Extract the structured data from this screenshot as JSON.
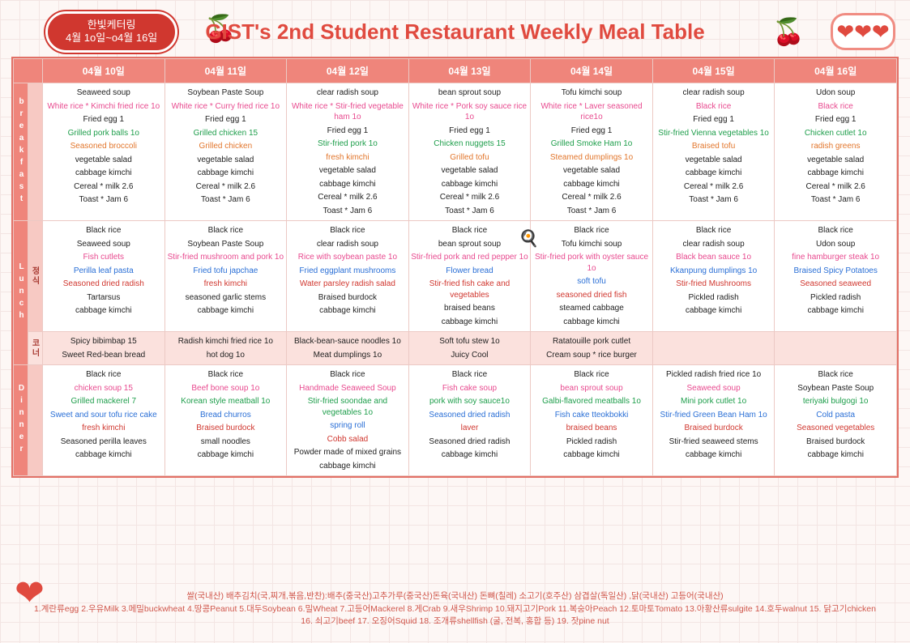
{
  "badge": {
    "line1": "한빛케터링",
    "line2": "4월 1o일~o4월 16일"
  },
  "title": "GIST's 2nd Student Restaurant Weekly Meal Table",
  "dates": [
    "04월 10일",
    "04월 11일",
    "04월 12일",
    "04월 13일",
    "04월 14일",
    "04월 15일",
    "04월 16일"
  ],
  "row_labels": {
    "breakfast": "breakfast",
    "lunch": "Lunch",
    "lunch_sub": "정식",
    "corner": "코너",
    "dinner": "Dinner"
  },
  "color_map": {
    "black": "#222222",
    "pink": "#e84a8f",
    "green": "#1e9e4b",
    "orange": "#e2762c",
    "red": "#d0372f",
    "blue": "#2a6fd6"
  },
  "breakfast": [
    [
      [
        "Seaweed soup",
        "black"
      ],
      [
        "White rice * Kimchi fried rice 1o",
        "pink"
      ],
      [
        "Fried egg 1",
        "black"
      ],
      [
        "Grilled pork balls 1o",
        "green"
      ],
      [
        "Seasoned broccoli",
        "orange"
      ],
      [
        "vegetable salad",
        "black"
      ],
      [
        "cabbage kimchi",
        "black"
      ],
      [
        "Cereal * milk 2.6",
        "black"
      ],
      [
        "Toast * Jam 6",
        "black"
      ]
    ],
    [
      [
        "Soybean Paste Soup",
        "black"
      ],
      [
        "White rice * Curry fried rice 1o",
        "pink"
      ],
      [
        "Fried egg 1",
        "black"
      ],
      [
        "Grilled chicken 15",
        "green"
      ],
      [
        "Grilled chicken",
        "orange"
      ],
      [
        "vegetable salad",
        "black"
      ],
      [
        "cabbage kimchi",
        "black"
      ],
      [
        "Cereal * milk 2.6",
        "black"
      ],
      [
        "Toast * Jam 6",
        "black"
      ]
    ],
    [
      [
        "clear radish soup",
        "black"
      ],
      [
        "White rice * Stir-fried vegetable ham 1o",
        "pink"
      ],
      [
        "Fried egg 1",
        "black"
      ],
      [
        "Stir-fried pork 1o",
        "green"
      ],
      [
        "fresh kimchi",
        "orange"
      ],
      [
        "vegetable salad",
        "black"
      ],
      [
        "cabbage kimchi",
        "black"
      ],
      [
        "Cereal * milk 2.6",
        "black"
      ],
      [
        "Toast * Jam 6",
        "black"
      ]
    ],
    [
      [
        "bean sprout soup",
        "black"
      ],
      [
        "White rice * Pork soy sauce rice 1o",
        "pink"
      ],
      [
        "Fried egg 1",
        "black"
      ],
      [
        "Chicken nuggets 15",
        "green"
      ],
      [
        "Grilled tofu",
        "orange"
      ],
      [
        "vegetable salad",
        "black"
      ],
      [
        "cabbage kimchi",
        "black"
      ],
      [
        "Cereal * milk 2.6",
        "black"
      ],
      [
        "Toast * Jam 6",
        "black"
      ]
    ],
    [
      [
        "Tofu kimchi soup",
        "black"
      ],
      [
        "White rice * Laver seasoned rice1o",
        "pink"
      ],
      [
        "Fried egg 1",
        "black"
      ],
      [
        "Grilled Smoke Ham 1o",
        "green"
      ],
      [
        "Steamed dumplings 1o",
        "orange"
      ],
      [
        "vegetable salad",
        "black"
      ],
      [
        "cabbage kimchi",
        "black"
      ],
      [
        "Cereal * milk 2.6",
        "black"
      ],
      [
        "Toast * Jam 6",
        "black"
      ]
    ],
    [
      [
        "clear radish soup",
        "black"
      ],
      [
        "Black rice",
        "pink"
      ],
      [
        "Fried egg 1",
        "black"
      ],
      [
        "Stir-fried Vienna vegetables 1o",
        "green"
      ],
      [
        "Braised tofu",
        "orange"
      ],
      [
        "vegetable salad",
        "black"
      ],
      [
        "cabbage kimchi",
        "black"
      ],
      [
        "Cereal * milk 2.6",
        "black"
      ],
      [
        "Toast * Jam 6",
        "black"
      ]
    ],
    [
      [
        "Udon soup",
        "black"
      ],
      [
        "Black rice",
        "pink"
      ],
      [
        "Fried egg 1",
        "black"
      ],
      [
        "Chicken cutlet 1o",
        "green"
      ],
      [
        "radish greens",
        "orange"
      ],
      [
        "vegetable salad",
        "black"
      ],
      [
        "cabbage kimchi",
        "black"
      ],
      [
        "Cereal * milk 2.6",
        "black"
      ],
      [
        "Toast * Jam 6",
        "black"
      ]
    ]
  ],
  "lunch": [
    [
      [
        "Black rice",
        "black"
      ],
      [
        "Seaweed soup",
        "black"
      ],
      [
        "Fish cutlets",
        "pink"
      ],
      [
        "Perilla leaf pasta",
        "blue"
      ],
      [
        "Seasoned dried radish",
        "red"
      ],
      [
        "Tartarsus",
        "black"
      ],
      [
        "cabbage kimchi",
        "black"
      ]
    ],
    [
      [
        "Black rice",
        "black"
      ],
      [
        "Soybean Paste Soup",
        "black"
      ],
      [
        "Stir-fried mushroom and pork 1o",
        "pink"
      ],
      [
        "Fried tofu japchae",
        "blue"
      ],
      [
        "fresh kimchi",
        "red"
      ],
      [
        "seasoned garlic stems",
        "black"
      ],
      [
        "cabbage kimchi",
        "black"
      ]
    ],
    [
      [
        "Black rice",
        "black"
      ],
      [
        "clear radish soup",
        "black"
      ],
      [
        "Rice with soybean paste 1o",
        "pink"
      ],
      [
        "Fried eggplant mushrooms",
        "blue"
      ],
      [
        "Water parsley radish salad",
        "red"
      ],
      [
        "Braised burdock",
        "black"
      ],
      [
        "cabbage kimchi",
        "black"
      ]
    ],
    [
      [
        "Black rice",
        "black"
      ],
      [
        "bean sprout soup",
        "black"
      ],
      [
        "Stir-fried pork and red pepper 1o",
        "pink"
      ],
      [
        "Flower bread",
        "blue"
      ],
      [
        "Stir-fried fish cake and vegetables",
        "red"
      ],
      [
        "braised beans",
        "black"
      ],
      [
        "cabbage kimchi",
        "black"
      ]
    ],
    [
      [
        "Black rice",
        "black"
      ],
      [
        "Tofu kimchi soup",
        "black"
      ],
      [
        "Stir-fried pork with oyster sauce 1o",
        "pink"
      ],
      [
        "soft tofu",
        "blue"
      ],
      [
        "seasoned dried fish",
        "red"
      ],
      [
        "steamed cabbage",
        "black"
      ],
      [
        "cabbage kimchi",
        "black"
      ]
    ],
    [
      [
        "Black rice",
        "black"
      ],
      [
        "clear radish soup",
        "black"
      ],
      [
        "Black bean sauce 1o",
        "pink"
      ],
      [
        "Kkanpung dumplings 1o",
        "blue"
      ],
      [
        "Stir-fried Mushrooms",
        "red"
      ],
      [
        "Pickled radish",
        "black"
      ],
      [
        "cabbage kimchi",
        "black"
      ]
    ],
    [
      [
        "Black rice",
        "black"
      ],
      [
        "Udon soup",
        "black"
      ],
      [
        "fine hamburger steak 1o",
        "pink"
      ],
      [
        "Braised Spicy Potatoes",
        "blue"
      ],
      [
        "Seasoned seaweed",
        "red"
      ],
      [
        "Pickled radish",
        "black"
      ],
      [
        "cabbage kimchi",
        "black"
      ]
    ]
  ],
  "corner": [
    [
      [
        "Spicy bibimbap 15",
        "black"
      ],
      [
        "Sweet Red-bean bread",
        "black"
      ]
    ],
    [
      [
        "Radish kimchi fried rice 1o",
        "black"
      ],
      [
        "hot dog 1o",
        "black"
      ]
    ],
    [
      [
        "Black-bean-sauce noodles 1o",
        "black"
      ],
      [
        "Meat dumplings 1o",
        "black"
      ]
    ],
    [
      [
        "Soft tofu stew 1o",
        "black"
      ],
      [
        "Juicy Cool",
        "black"
      ]
    ],
    [
      [
        "Ratatouille pork cutlet",
        "black"
      ],
      [
        "Cream soup * rice burger",
        "black"
      ]
    ],
    [],
    []
  ],
  "dinner": [
    [
      [
        "Black rice",
        "black"
      ],
      [
        "chicken soup 15",
        "pink"
      ],
      [
        "Grilled mackerel 7",
        "green"
      ],
      [
        "Sweet and sour tofu rice cake",
        "blue"
      ],
      [
        "fresh kimchi",
        "red"
      ],
      [
        "Seasoned perilla leaves",
        "black"
      ],
      [
        "cabbage kimchi",
        "black"
      ]
    ],
    [
      [
        "Black rice",
        "black"
      ],
      [
        "Beef bone soup 1o",
        "pink"
      ],
      [
        "Korean style meatball 1o",
        "green"
      ],
      [
        "Bread churros",
        "blue"
      ],
      [
        "Braised burdock",
        "red"
      ],
      [
        "small noodles",
        "black"
      ],
      [
        "cabbage kimchi",
        "black"
      ]
    ],
    [
      [
        "Black rice",
        "black"
      ],
      [
        "Handmade Seaweed Soup",
        "pink"
      ],
      [
        "Stir-fried soondae and vegetables 1o",
        "green"
      ],
      [
        "spring roll",
        "blue"
      ],
      [
        "Cobb salad",
        "red"
      ],
      [
        "Powder made of mixed grains",
        "black"
      ],
      [
        "cabbage kimchi",
        "black"
      ]
    ],
    [
      [
        "Black rice",
        "black"
      ],
      [
        "Fish cake soup",
        "pink"
      ],
      [
        "pork with soy sauce1o",
        "green"
      ],
      [
        "Seasoned dried radish",
        "blue"
      ],
      [
        "laver",
        "red"
      ],
      [
        "Seasoned dried radish",
        "black"
      ],
      [
        "cabbage kimchi",
        "black"
      ]
    ],
    [
      [
        "Black rice",
        "black"
      ],
      [
        "bean sprout soup",
        "pink"
      ],
      [
        "Galbi-flavored meatballs 1o",
        "green"
      ],
      [
        "Fish cake tteokbokki",
        "blue"
      ],
      [
        "braised beans",
        "red"
      ],
      [
        "Pickled radish",
        "black"
      ],
      [
        "cabbage kimchi",
        "black"
      ]
    ],
    [
      [
        "Pickled radish fried rice 1o",
        "black"
      ],
      [
        "Seaweed soup",
        "pink"
      ],
      [
        "Mini pork cutlet 1o",
        "green"
      ],
      [
        "Stir-fried Green Bean Ham 1o",
        "blue"
      ],
      [
        "Braised burdock",
        "red"
      ],
      [
        "Stir-fried seaweed stems",
        "black"
      ],
      [
        "cabbage kimchi",
        "black"
      ]
    ],
    [
      [
        "Black rice",
        "black"
      ],
      [
        "Soybean Paste Soup",
        "black"
      ],
      [
        "teriyaki bulgogi 1o",
        "green"
      ],
      [
        "Cold pasta",
        "blue"
      ],
      [
        "Seasoned vegetables",
        "red"
      ],
      [
        "Braised burdock",
        "black"
      ],
      [
        "cabbage kimchi",
        "black"
      ]
    ]
  ],
  "footer": {
    "line1": "쌀(국내산) 배추김치(국,찌개,볶음,반찬):배추(중국산)고추가루(중국산)돈육(국내산) 돈뼈(칠레) 소고기(호주산) 삼겹살(독일산) ,닭(국내산) 고등어(국내산)",
    "line2": "1.계란류egg 2.우유Milk 3.메밀buckwheat 4.땅콩Peanut 5.대두Soybean 6.밀Wheat 7.고등어Mackerel 8.게Crab 9.새우Shrimp 10.돼지고기Pork 11.복숭아Peach 12.토마토Tomato 13.아황산류sulgite 14.호두walnut 15. 닭고기chicken 16. 쇠고기beef 17. 오징어Squid 18. 조개류shellfish (굴, 전복, 홍합 등) 19. 잣pine nut"
  }
}
